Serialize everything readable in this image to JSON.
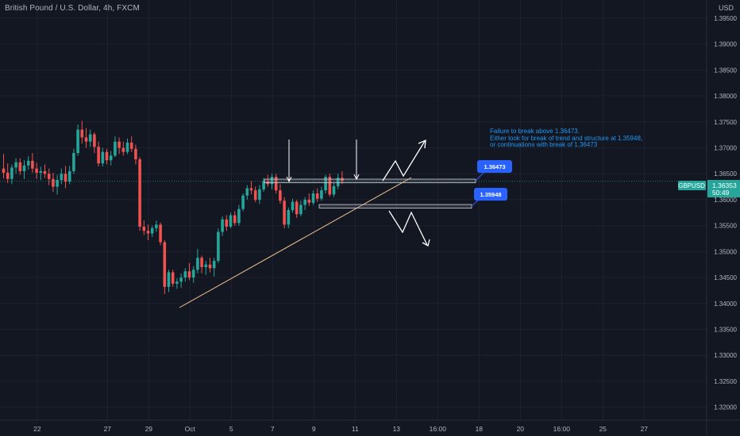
{
  "header": {
    "title": "British Pound / U.S. Dollar, 4h, FXCM",
    "currency": "USD"
  },
  "price_tag": {
    "symbol": "GBPUSD",
    "price": "1.36353",
    "countdown": "50:49"
  },
  "annotation": {
    "lines": [
      "Failure to break above 1.36473.",
      "Either look for break of trend and structure at 1.35948,",
      "or continuations with break of 1.36473"
    ]
  },
  "levels": {
    "upper": {
      "label": "1.36473",
      "price": 1.36473
    },
    "lower": {
      "label": "1.35948",
      "price": 1.35948
    }
  },
  "colors": {
    "background": "#131722",
    "grid": "#1e2230",
    "up": "#26a69a",
    "down": "#ef5350",
    "trendline": "#f0c090",
    "label_box": "#2962ff",
    "price_tag": "#26a69a"
  },
  "chart_data": {
    "type": "candlestick",
    "symbol": "GBPUSD",
    "timeframe": "4h",
    "ylim": [
      1.3175,
      1.3985
    ],
    "y_ticks": [
      "1.39500",
      "1.39000",
      "1.38500",
      "1.38000",
      "1.37500",
      "1.37000",
      "1.36500",
      "1.36000",
      "1.35500",
      "1.35000",
      "1.34500",
      "1.34000",
      "1.33500",
      "1.33000",
      "1.32500",
      "1.32000"
    ],
    "x_ticks": [
      "22",
      "27",
      "29",
      "Oct",
      "5",
      "7",
      "9",
      "11",
      "13",
      "16:00",
      "18",
      "20",
      "16:00",
      "25",
      "27"
    ],
    "x_tick_index": [
      7,
      24,
      34,
      44,
      54,
      64,
      74,
      84,
      94,
      104,
      114,
      124,
      134,
      144,
      154
    ],
    "candles": [
      [
        1.366,
        1.3688,
        1.3641,
        1.3652
      ],
      [
        1.3652,
        1.367,
        1.3632,
        1.364
      ],
      [
        1.364,
        1.3668,
        1.363,
        1.3662
      ],
      [
        1.3662,
        1.368,
        1.365,
        1.3672
      ],
      [
        1.3672,
        1.368,
        1.3648,
        1.3655
      ],
      [
        1.3655,
        1.3676,
        1.364,
        1.3666
      ],
      [
        1.3666,
        1.3684,
        1.3658,
        1.3675
      ],
      [
        1.3675,
        1.369,
        1.3652,
        1.366
      ],
      [
        1.366,
        1.3671,
        1.364,
        1.3652
      ],
      [
        1.3652,
        1.3664,
        1.3638,
        1.3655
      ],
      [
        1.3655,
        1.3668,
        1.3642,
        1.365
      ],
      [
        1.365,
        1.366,
        1.3628,
        1.364
      ],
      [
        1.364,
        1.3652,
        1.3615,
        1.3625
      ],
      [
        1.3625,
        1.3648,
        1.361,
        1.3638
      ],
      [
        1.3638,
        1.366,
        1.363,
        1.365
      ],
      [
        1.365,
        1.3665,
        1.3622,
        1.3635
      ],
      [
        1.3635,
        1.3665,
        1.363,
        1.3655
      ],
      [
        1.3655,
        1.3698,
        1.365,
        1.369
      ],
      [
        1.369,
        1.3745,
        1.3685,
        1.3735
      ],
      [
        1.3735,
        1.3752,
        1.3708,
        1.372
      ],
      [
        1.372,
        1.3738,
        1.37,
        1.3712
      ],
      [
        1.3712,
        1.3735,
        1.3702,
        1.3726
      ],
      [
        1.3726,
        1.373,
        1.369,
        1.3702
      ],
      [
        1.3702,
        1.3712,
        1.3664,
        1.367
      ],
      [
        1.367,
        1.37,
        1.3664,
        1.3692
      ],
      [
        1.3692,
        1.3698,
        1.3668,
        1.3676
      ],
      [
        1.3676,
        1.3694,
        1.3666,
        1.3685
      ],
      [
        1.3685,
        1.3722,
        1.3682,
        1.3712
      ],
      [
        1.3712,
        1.372,
        1.3688,
        1.37
      ],
      [
        1.37,
        1.3712,
        1.3685,
        1.3692
      ],
      [
        1.3692,
        1.3718,
        1.3688,
        1.371
      ],
      [
        1.371,
        1.3722,
        1.3692,
        1.3698
      ],
      [
        1.3698,
        1.3706,
        1.3668,
        1.3678
      ],
      [
        1.3678,
        1.3682,
        1.354,
        1.3548
      ],
      [
        1.3548,
        1.356,
        1.3532,
        1.354
      ],
      [
        1.354,
        1.3552,
        1.3522,
        1.3535
      ],
      [
        1.3535,
        1.355,
        1.3528,
        1.3545
      ],
      [
        1.3545,
        1.356,
        1.3538,
        1.3552
      ],
      [
        1.3552,
        1.3556,
        1.3512,
        1.3518
      ],
      [
        1.3518,
        1.3522,
        1.3418,
        1.3432
      ],
      [
        1.3432,
        1.3465,
        1.3422,
        1.346
      ],
      [
        1.346,
        1.3465,
        1.3432,
        1.3438
      ],
      [
        1.3438,
        1.3448,
        1.3428,
        1.3442
      ],
      [
        1.3442,
        1.3458,
        1.343,
        1.345
      ],
      [
        1.345,
        1.3468,
        1.3442,
        1.3462
      ],
      [
        1.3462,
        1.3478,
        1.3445,
        1.345
      ],
      [
        1.345,
        1.3472,
        1.344,
        1.3465
      ],
      [
        1.3465,
        1.3505,
        1.3458,
        1.3488
      ],
      [
        1.3488,
        1.3492,
        1.3458,
        1.347
      ],
      [
        1.347,
        1.3482,
        1.3455,
        1.3475
      ],
      [
        1.3475,
        1.3488,
        1.346,
        1.3468
      ],
      [
        1.3468,
        1.3488,
        1.3452,
        1.3482
      ],
      [
        1.3482,
        1.3545,
        1.3478,
        1.3538
      ],
      [
        1.3538,
        1.3568,
        1.353,
        1.3562
      ],
      [
        1.3562,
        1.357,
        1.354,
        1.3548
      ],
      [
        1.3548,
        1.3575,
        1.3545,
        1.357
      ],
      [
        1.357,
        1.3578,
        1.355,
        1.3555
      ],
      [
        1.3555,
        1.359,
        1.355,
        1.3582
      ],
      [
        1.3582,
        1.3612,
        1.3578,
        1.3608
      ],
      [
        1.3608,
        1.3628,
        1.36,
        1.3622
      ],
      [
        1.3622,
        1.3636,
        1.361,
        1.3618
      ],
      [
        1.3618,
        1.3625,
        1.3595,
        1.36
      ],
      [
        1.36,
        1.3628,
        1.3592,
        1.362
      ],
      [
        1.362,
        1.3642,
        1.3615,
        1.3636
      ],
      [
        1.3636,
        1.3648,
        1.3625,
        1.363
      ],
      [
        1.363,
        1.365,
        1.362,
        1.3644
      ],
      [
        1.3644,
        1.365,
        1.3612,
        1.3618
      ],
      [
        1.3618,
        1.363,
        1.3592,
        1.3598
      ],
      [
        1.3598,
        1.3605,
        1.3545,
        1.3552
      ],
      [
        1.3552,
        1.3585,
        1.3545,
        1.358
      ],
      [
        1.358,
        1.3602,
        1.3575,
        1.3596
      ],
      [
        1.3596,
        1.36,
        1.3565,
        1.3572
      ],
      [
        1.3572,
        1.3598,
        1.3568,
        1.359
      ],
      [
        1.359,
        1.3605,
        1.358,
        1.36
      ],
      [
        1.36,
        1.3612,
        1.3588,
        1.3594
      ],
      [
        1.3594,
        1.3618,
        1.359,
        1.3612
      ],
      [
        1.3612,
        1.3622,
        1.3596,
        1.3602
      ],
      [
        1.3602,
        1.3625,
        1.3598,
        1.3618
      ],
      [
        1.3618,
        1.3648,
        1.3612,
        1.3644
      ],
      [
        1.3644,
        1.365,
        1.3606,
        1.361
      ],
      [
        1.361,
        1.3632,
        1.3605,
        1.3626
      ],
      [
        1.3626,
        1.365,
        1.362,
        1.3642
      ],
      [
        1.3642,
        1.3655,
        1.363,
        1.3636
      ]
    ]
  }
}
